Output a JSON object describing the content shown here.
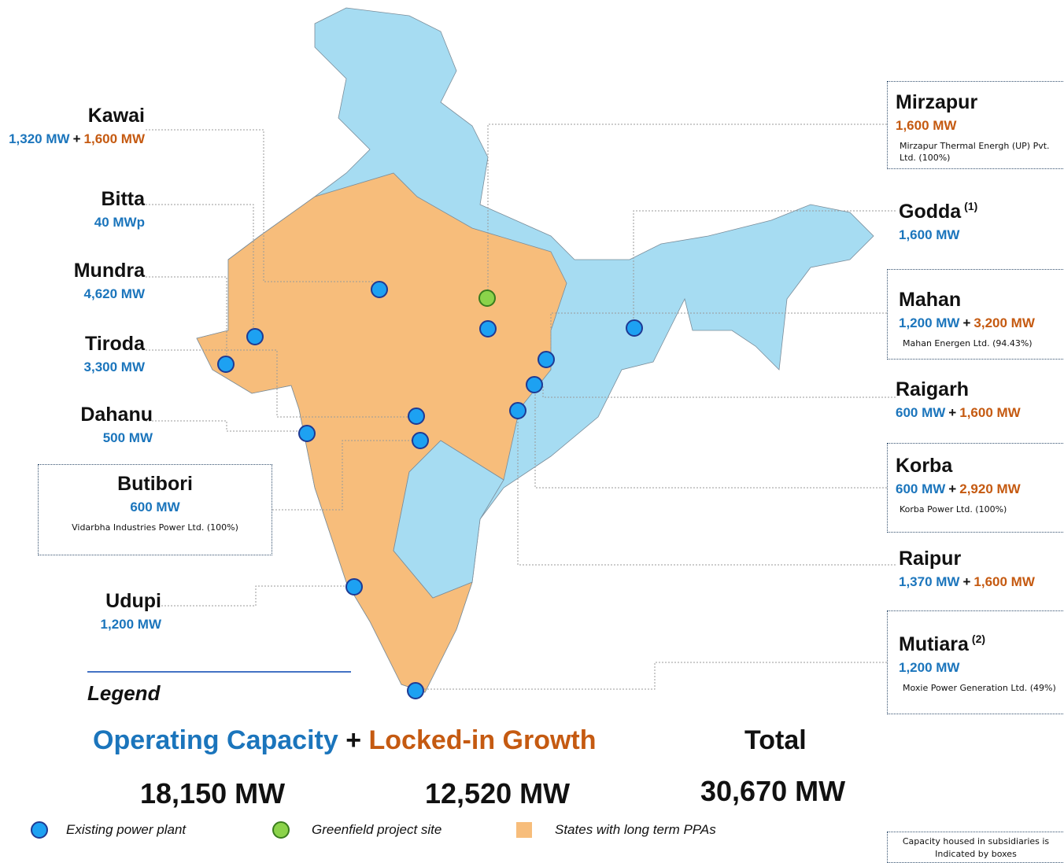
{
  "plants": [
    {
      "name": "Kawai",
      "operating": "1,320 MW",
      "growth": "1,600 MW"
    },
    {
      "name": "Bitta",
      "operating": "40 MWp"
    },
    {
      "name": "Mundra",
      "operating": "4,620 MW"
    },
    {
      "name": "Tiroda",
      "operating": "3,300 MW"
    },
    {
      "name": "Dahanu",
      "operating": "500 MW"
    },
    {
      "name": "Butibori",
      "operating": "600 MW",
      "company": "Vidarbha Industries Power Ltd. (100%)"
    },
    {
      "name": "Udupi",
      "operating": "1,200 MW"
    },
    {
      "name": "Mirzapur",
      "growth": "1,600 MW",
      "company": "Mirzapur Thermal Energh (UP) Pvt.  Ltd. (100%)"
    },
    {
      "name": "Godda",
      "note": "(1)",
      "operating": "1,600 MW"
    },
    {
      "name": "Mahan",
      "operating": "1,200 MW",
      "growth": "3,200 MW",
      "company": "Mahan Energen Ltd. (94.43%)"
    },
    {
      "name": "Raigarh",
      "operating": "600 MW",
      "growth": "1,600 MW"
    },
    {
      "name": "Korba",
      "operating": "600 MW",
      "growth": "2,920 MW",
      "company": "Korba Power Ltd. (100%)"
    },
    {
      "name": "Raipur",
      "operating": "1,370 MW",
      "growth": "1,600 MW"
    },
    {
      "name": "Mutiara",
      "note": "(2)",
      "operating": "1,200 MW",
      "company": "Moxie Power Generation Ltd. (49%)"
    }
  ],
  "plus": "+",
  "legend": {
    "title": "Legend",
    "operating_label": "Operating Capacity",
    "growth_label": "Locked-in Growth",
    "total_label": "Total",
    "operating_total": "18,150 MW",
    "growth_total": "12,520 MW",
    "total": "30,670 MW",
    "keys": [
      "Existing power plant",
      "Greenfield project site",
      "States with long term PPAs"
    ]
  },
  "footnote": "Capacity housed in subsidiaries is Indicated by boxes"
}
